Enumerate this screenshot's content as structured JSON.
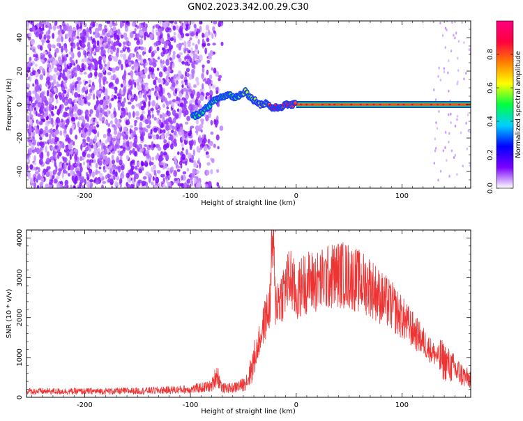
{
  "title": "GN02.2023.342.00.29.C30",
  "chart_data": [
    {
      "type": "heatmap",
      "xlabel": "Height of straight line (km)",
      "ylabel": "Frequency (Hz)",
      "xlim": [
        -255,
        165
      ],
      "ylim": [
        -50,
        50
      ],
      "x_ticks": [
        -200,
        -100,
        0,
        100
      ],
      "y_ticks": [
        -40,
        -20,
        0,
        20,
        40
      ],
      "colorbar": {
        "label": "Normalized spectral amplitude",
        "range": [
          0.0,
          1.0
        ],
        "ticks": [
          "0.0",
          "0.2",
          "0.4",
          "0.6",
          "0.8"
        ],
        "colors": [
          "#ffffff",
          "#7a00ff",
          "#0000ff",
          "#00d0ff",
          "#00ff40",
          "#ffff00",
          "#ff8000",
          "#ff0040",
          "#ff0080"
        ]
      },
      "noise_region": {
        "x_start": -255,
        "x_end": -70,
        "freq_range": [
          -50,
          50
        ],
        "amplitude": 0.1
      },
      "signal_track": [
        {
          "x": -98,
          "freq": -7,
          "amplitude": 0.45
        },
        {
          "x": -93,
          "freq": -6,
          "amplitude": 0.55
        },
        {
          "x": -88,
          "freq": -4,
          "amplitude": 0.5
        },
        {
          "x": -83,
          "freq": -1,
          "amplitude": 0.45
        },
        {
          "x": -78,
          "freq": 2,
          "amplitude": 0.5
        },
        {
          "x": -73,
          "freq": 4,
          "amplitude": 0.55
        },
        {
          "x": -68,
          "freq": 5,
          "amplitude": 0.5
        },
        {
          "x": -63,
          "freq": 6,
          "amplitude": 0.55
        },
        {
          "x": -58,
          "freq": 4,
          "amplitude": 0.5
        },
        {
          "x": -53,
          "freq": 6,
          "amplitude": 0.55
        },
        {
          "x": -48,
          "freq": 8,
          "amplitude": 0.6
        },
        {
          "x": -43,
          "freq": 4,
          "amplitude": 0.55
        },
        {
          "x": -38,
          "freq": 2,
          "amplitude": 0.6
        },
        {
          "x": -33,
          "freq": 0,
          "amplitude": 0.65
        },
        {
          "x": -28,
          "freq": 1,
          "amplitude": 0.6
        },
        {
          "x": -23,
          "freq": -2,
          "amplitude": 0.9
        },
        {
          "x": -18,
          "freq": -2,
          "amplitude": 0.9
        },
        {
          "x": -13,
          "freq": -1,
          "amplitude": 0.8
        },
        {
          "x": -8,
          "freq": 0,
          "amplitude": 0.85
        },
        {
          "x": 0,
          "freq": 0,
          "amplitude": 0.8
        },
        {
          "x": 165,
          "freq": 0,
          "amplitude": 0.8
        }
      ]
    },
    {
      "type": "line",
      "xlabel": "Height of straight line (km)",
      "ylabel": "SNR (10 * v/v)",
      "xlim": [
        -255,
        165
      ],
      "ylim": [
        0,
        4200
      ],
      "x_ticks": [
        -200,
        -100,
        0,
        100
      ],
      "y_ticks": [
        0,
        1000,
        2000,
        3000,
        4000
      ],
      "color": "#ee3333",
      "series": [
        {
          "x": [
            -255,
            -200,
            -150,
            -100,
            -80,
            -75,
            -70,
            -60,
            -50,
            -45,
            -40,
            -35,
            -30,
            -25,
            -22,
            -20,
            -15,
            -10,
            -5,
            0,
            5,
            10,
            20,
            30,
            40,
            50,
            60,
            70,
            80,
            90,
            100,
            110,
            120,
            130,
            140,
            150,
            160,
            165
          ],
          "y": [
            150,
            150,
            160,
            200,
            280,
            600,
            230,
            230,
            320,
            500,
            900,
            1400,
            1900,
            2300,
            4200,
            2400,
            2500,
            2800,
            3000,
            2500,
            2800,
            2900,
            2900,
            3000,
            3100,
            3050,
            2900,
            2800,
            2500,
            2300,
            2000,
            1700,
            1400,
            1100,
            900,
            700,
            500,
            450
          ]
        }
      ]
    }
  ]
}
